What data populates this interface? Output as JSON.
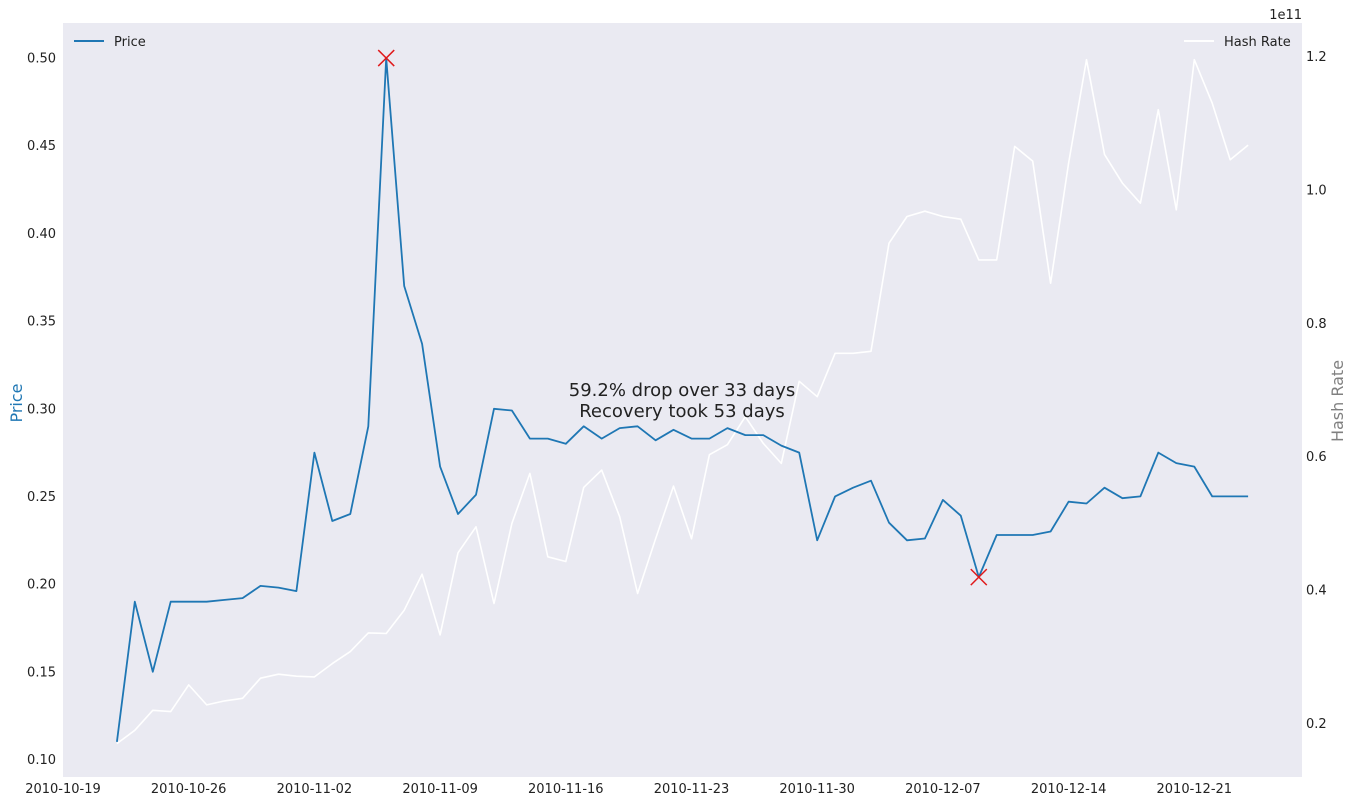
{
  "chart_data": {
    "type": "line",
    "x_axis": {
      "tick_dates": [
        "2010-10-19",
        "2010-10-26",
        "2010-11-02",
        "2010-11-09",
        "2010-11-16",
        "2010-11-23",
        "2010-11-30",
        "2010-12-07",
        "2010-12-14",
        "2010-12-21"
      ],
      "range": [
        "2010-10-19",
        "2010-12-27"
      ]
    },
    "y_left": {
      "label": "Price",
      "color": "#1f77b4",
      "ticks": [
        "0.10",
        "0.15",
        "0.20",
        "0.25",
        "0.30",
        "0.35",
        "0.40",
        "0.45",
        "0.50"
      ],
      "range": [
        0.09,
        0.52
      ]
    },
    "y_right": {
      "label": "Hash Rate",
      "color": "#808080",
      "ticks": [
        "0.2",
        "0.4",
        "0.6",
        "0.8",
        "1.0",
        "1.2"
      ],
      "offset_text": "1e11",
      "range": [
        12000000000.0,
        125000000000.0
      ]
    },
    "series": [
      {
        "name": "Price",
        "axis": "left",
        "color": "#1f77b4",
        "x": [
          "2010-10-22",
          "2010-10-23",
          "2010-10-24",
          "2010-10-25",
          "2010-10-26",
          "2010-10-27",
          "2010-10-28",
          "2010-10-29",
          "2010-10-30",
          "2010-10-31",
          "2010-11-01",
          "2010-11-02",
          "2010-11-03",
          "2010-11-04",
          "2010-11-05",
          "2010-11-06",
          "2010-11-07",
          "2010-11-08",
          "2010-11-09",
          "2010-11-10",
          "2010-11-11",
          "2010-11-12",
          "2010-11-13",
          "2010-11-14",
          "2010-11-15",
          "2010-11-16",
          "2010-11-17",
          "2010-11-18",
          "2010-11-19",
          "2010-11-20",
          "2010-11-21",
          "2010-11-22",
          "2010-11-23",
          "2010-11-24",
          "2010-11-25",
          "2010-11-26",
          "2010-11-27",
          "2010-11-28",
          "2010-11-29",
          "2010-11-30",
          "2010-12-01",
          "2010-12-02",
          "2010-12-03",
          "2010-12-04",
          "2010-12-05",
          "2010-12-06",
          "2010-12-07",
          "2010-12-08",
          "2010-12-09",
          "2010-12-10",
          "2010-12-11",
          "2010-12-12",
          "2010-12-13",
          "2010-12-14",
          "2010-12-15",
          "2010-12-16",
          "2010-12-17",
          "2010-12-18",
          "2010-12-19",
          "2010-12-20",
          "2010-12-21",
          "2010-12-22",
          "2010-12-23",
          "2010-12-24"
        ],
        "values": [
          0.11,
          0.19,
          0.15,
          0.19,
          0.19,
          0.19,
          0.191,
          0.192,
          0.199,
          0.198,
          0.196,
          0.275,
          0.236,
          0.24,
          0.29,
          0.5,
          0.37,
          0.337,
          0.267,
          0.24,
          0.251,
          0.3,
          0.299,
          0.283,
          0.283,
          0.28,
          0.29,
          0.283,
          0.289,
          0.29,
          0.282,
          0.288,
          0.283,
          0.283,
          0.289,
          0.285,
          0.285,
          0.279,
          0.275,
          0.225,
          0.25,
          0.255,
          0.259,
          0.235,
          0.225,
          0.226,
          0.248,
          0.239,
          0.204,
          0.228,
          0.228,
          0.228,
          0.23,
          0.247,
          0.246,
          0.255,
          0.249,
          0.25,
          0.275,
          0.269,
          0.267,
          0.25,
          0.25,
          0.25
        ]
      },
      {
        "name": "Hash Rate",
        "axis": "right",
        "color": "#ffffff",
        "x": [
          "2010-10-22",
          "2010-10-23",
          "2010-10-24",
          "2010-10-25",
          "2010-10-26",
          "2010-10-27",
          "2010-10-28",
          "2010-10-29",
          "2010-10-30",
          "2010-10-31",
          "2010-11-01",
          "2010-11-02",
          "2010-11-03",
          "2010-11-04",
          "2010-11-05",
          "2010-11-06",
          "2010-11-07",
          "2010-11-08",
          "2010-11-09",
          "2010-11-10",
          "2010-11-11",
          "2010-11-12",
          "2010-11-13",
          "2010-11-14",
          "2010-11-15",
          "2010-11-16",
          "2010-11-17",
          "2010-11-18",
          "2010-11-19",
          "2010-11-20",
          "2010-11-21",
          "2010-11-22",
          "2010-11-23",
          "2010-11-24",
          "2010-11-25",
          "2010-11-26",
          "2010-11-27",
          "2010-11-28",
          "2010-11-29",
          "2010-11-30",
          "2010-12-01",
          "2010-12-02",
          "2010-12-03",
          "2010-12-04",
          "2010-12-05",
          "2010-12-06",
          "2010-12-07",
          "2010-12-08",
          "2010-12-09",
          "2010-12-10",
          "2010-12-11",
          "2010-12-12",
          "2010-12-13",
          "2010-12-14",
          "2010-12-15",
          "2010-12-16",
          "2010-12-17",
          "2010-12-18",
          "2010-12-19",
          "2010-12-20",
          "2010-12-21",
          "2010-12-22",
          "2010-12-23",
          "2010-12-24"
        ],
        "values": [
          17000000000.0,
          19000000000.0,
          22000000000.0,
          21800000000.0,
          25800000000.0,
          22800000000.0,
          23400000000.0,
          23800000000.0,
          26800000000.0,
          27400000000.0,
          27100000000.0,
          27000000000.0,
          29000000000.0,
          30800000000.0,
          33600000000.0,
          33500000000.0,
          37000000000.0,
          42400000000.0,
          33300000000.0,
          45600000000.0,
          49500000000.0,
          38000000000.0,
          50000000000.0,
          57500000000.0,
          45000000000.0,
          44300000000.0,
          55400000000.0,
          58000000000.0,
          51000000000.0,
          39500000000.0,
          47700000000.0,
          55600000000.0,
          47700000000.0,
          60300000000.0,
          61800000000.0,
          66000000000.0,
          62000000000.0,
          59000000000.0,
          71300000000.0,
          69000000000.0,
          75500000000.0,
          75500000000.0,
          75800000000.0,
          92000000000.0,
          96000000000.0,
          96800000000.0,
          96000000000.0,
          95600000000.0,
          89500000000.0,
          89500000000.0,
          106500000000.0,
          104300000000.0,
          86000000000.0,
          104000000000.0,
          119500000000.0,
          105300000000.0,
          101000000000.0,
          98000000000.0,
          112000000000.0,
          97000000000.0,
          119500000000.0,
          113000000000.0,
          104500000000.0,
          106700000000.0
        ]
      }
    ],
    "markers": [
      {
        "x": "2010-11-06",
        "y": 0.5,
        "shape": "x",
        "color": "#e0191b"
      },
      {
        "x": "2010-12-09",
        "y": 0.204,
        "shape": "x",
        "color": "#e0191b"
      }
    ],
    "annotation": {
      "line1": "59.2% drop over 33 days",
      "line2": "Recovery took 53 days",
      "anchor_x": "2010-11-22",
      "anchor_y": 0.302
    },
    "legends": [
      {
        "label": "Price",
        "color": "#1f77b4",
        "placement": "top-left"
      },
      {
        "label": "Hash Rate",
        "color": "#ffffff",
        "placement": "top-right"
      }
    ],
    "style": {
      "plot_background": "#eaeaf2",
      "grid": false
    }
  }
}
